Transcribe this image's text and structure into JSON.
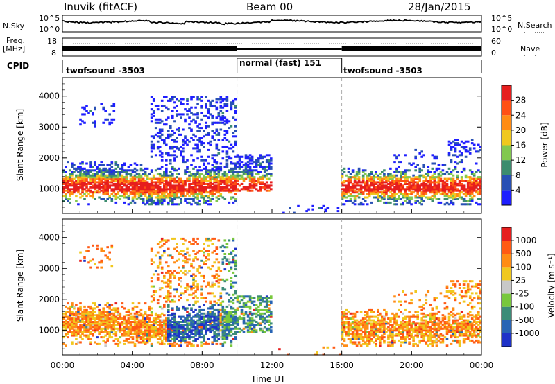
{
  "header": {
    "station": "Inuvik (fitACF)",
    "beam": "Beam 00",
    "date": "28/Jan/2015"
  },
  "panels": {
    "nsky": {
      "label": "N.Sky",
      "ticks": [
        "10^5",
        "10^0"
      ]
    },
    "freq": {
      "label_line1": "Freq.",
      "label_line2": "[MHz]",
      "ticks": [
        "18",
        "8"
      ]
    },
    "right": {
      "nsearch": "N.Search",
      "nsearch_ticks": [
        "10^5",
        "10^0"
      ],
      "nave": "Nave",
      "nave_ticks": [
        "60",
        "0"
      ]
    },
    "cpid": {
      "label": "CPID",
      "segments": [
        {
          "name": "twofsound -3503",
          "start": 0,
          "end": 10
        },
        {
          "name": "normal (fast) 151",
          "start": 10,
          "end": 16
        },
        {
          "name": "twofsound -3503",
          "start": 16,
          "end": 24
        }
      ]
    }
  },
  "chart_data": [
    {
      "type": "heatmap",
      "name": "power",
      "ylabel": "Slant Range [km]",
      "yticks": [
        1000,
        2000,
        3000,
        4000
      ],
      "ylim": [
        200,
        4600
      ],
      "xlim": [
        0,
        24
      ],
      "colorbar": {
        "label": "Power [dB]",
        "ticks": [
          "4",
          "8",
          "12",
          "16",
          "20",
          "24",
          "28"
        ],
        "colors": [
          "#1e1eff",
          "#2850b4",
          "#3c8c6e",
          "#82c850",
          "#f0c81e",
          "#ff8c14",
          "#ff5014",
          "#e61e1e"
        ]
      }
    },
    {
      "type": "heatmap",
      "name": "velocity",
      "ylabel": "Slant Range [km]",
      "yticks": [
        1000,
        2000,
        3000,
        4000
      ],
      "ylim": [
        200,
        4600
      ],
      "xlim": [
        0,
        24
      ],
      "colorbar": {
        "label": "Velocity [m s⁻¹]",
        "ticks": [
          "1000",
          "500",
          "100",
          "25",
          "-25",
          "-100",
          "-500",
          "-1000"
        ],
        "colors": [
          "#1e32c8",
          "#2864b4",
          "#3c8c78",
          "#78c83c",
          "#c8c8c8",
          "#f0c81e",
          "#ff8c14",
          "#ff5a14",
          "#e61e1e"
        ]
      }
    }
  ],
  "xaxis": {
    "label": "Time UT",
    "ticks": [
      "00:00",
      "04:00",
      "08:00",
      "12:00",
      "16:00",
      "20:00",
      "00:00"
    ]
  }
}
